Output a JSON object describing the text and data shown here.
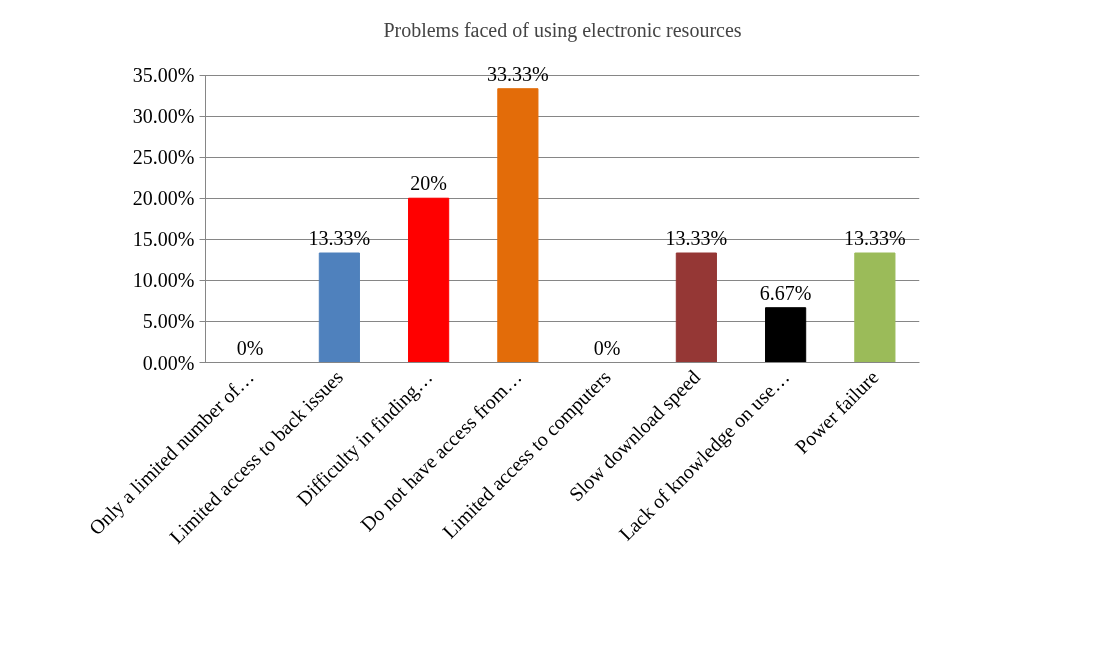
{
  "chart_data": {
    "type": "bar",
    "title": "Problems faced of using electronic resources",
    "categories": [
      "Only a limited number of…",
      "Limited access to back issues",
      "Difficulty in finding…",
      "Do not have access from…",
      "Limited access to computers",
      "Slow download speed",
      "Lack of knowledge on use…",
      "Power failure"
    ],
    "values": [
      0,
      13.33,
      20,
      33.33,
      0,
      13.33,
      6.67,
      13.33
    ],
    "value_labels": [
      "0%",
      "13.33%",
      "20%",
      "33.33%",
      "0%",
      "13.33%",
      "6.67%",
      "13.33%"
    ],
    "colors": [
      "#4f81bd",
      "#4f81bd",
      "#ff0000",
      "#e36c09",
      "#4f81bd",
      "#953735",
      "#000000",
      "#9bbb59"
    ],
    "ylim": [
      0,
      35
    ],
    "yticks": [
      {
        "value": 0,
        "label": "0.00%"
      },
      {
        "value": 5,
        "label": "5.00%"
      },
      {
        "value": 10,
        "label": "10.00%"
      },
      {
        "value": 15,
        "label": "15.00%"
      },
      {
        "value": 20,
        "label": "20.00%"
      },
      {
        "value": 25,
        "label": "25.00%"
      },
      {
        "value": 30,
        "label": "30.00%"
      },
      {
        "value": 35,
        "label": "35.00%"
      }
    ],
    "grid": "y"
  }
}
